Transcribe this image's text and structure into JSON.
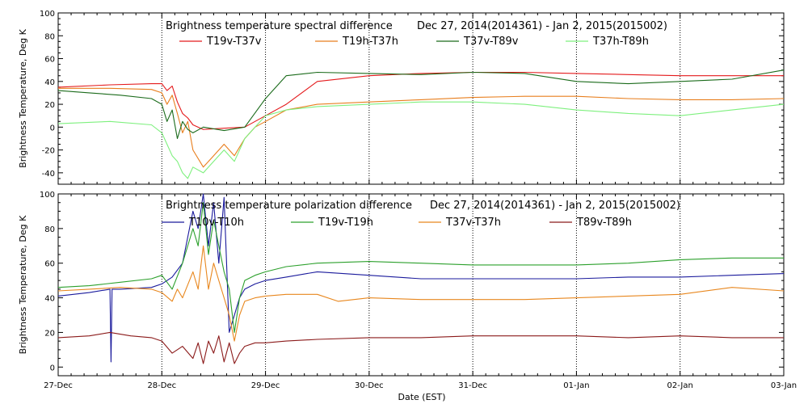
{
  "figure": {
    "xlabel": "Date (EST)",
    "x_tick_labels": [
      "27-Dec",
      "28-Dec",
      "29-Dec",
      "30-Dec",
      "31-Dec",
      "01-Jan",
      "02-Jan",
      "03-Jan"
    ]
  },
  "chart_data": [
    {
      "type": "line",
      "title": "Brightness temperature spectral difference",
      "date_range": "Dec 27, 2014(2014361) - Jan  2, 2015(2015002)",
      "ylabel": "Brightness Temperature, Deg K",
      "xlim": [
        0,
        7
      ],
      "ylim": [
        -50,
        100
      ],
      "yticks": [
        -40,
        -20,
        0,
        20,
        40,
        60,
        80,
        100
      ],
      "grid": "vertical dotted at each day",
      "legend_placement": "top, single row",
      "series": [
        {
          "name": "T19v-T37v",
          "color": "#e41a1c",
          "x": [
            0,
            0.5,
            0.9,
            1.0,
            1.05,
            1.1,
            1.15,
            1.2,
            1.25,
            1.3,
            1.4,
            1.6,
            1.8,
            2.0,
            2.2,
            2.5,
            3.0,
            3.5,
            4.0,
            4.5,
            5.0,
            5.5,
            6.0,
            6.5,
            7.0
          ],
          "y": [
            35,
            37,
            38,
            38,
            32,
            36,
            22,
            12,
            8,
            2,
            -2,
            -1,
            0,
            10,
            20,
            40,
            45,
            47,
            48,
            48,
            47,
            46,
            45,
            45,
            45
          ]
        },
        {
          "name": "T19h-T37h",
          "color": "#e87e1d",
          "x": [
            0,
            0.5,
            0.9,
            1.0,
            1.05,
            1.1,
            1.15,
            1.2,
            1.25,
            1.3,
            1.4,
            1.5,
            1.6,
            1.7,
            1.8,
            1.9,
            2.0,
            2.2,
            2.5,
            3.0,
            3.5,
            4.0,
            4.5,
            5.0,
            5.5,
            6.0,
            6.5,
            7.0
          ],
          "y": [
            34,
            34,
            33,
            30,
            20,
            28,
            12,
            -5,
            5,
            -20,
            -35,
            -25,
            -15,
            -25,
            -10,
            0,
            5,
            15,
            20,
            22,
            24,
            26,
            27,
            27,
            25,
            24,
            24,
            25
          ]
        },
        {
          "name": "T37v-T89v",
          "color": "#1b6b1b",
          "x": [
            0,
            0.3,
            0.6,
            0.9,
            1.0,
            1.05,
            1.1,
            1.15,
            1.2,
            1.25,
            1.3,
            1.4,
            1.6,
            1.8,
            2.0,
            2.2,
            2.5,
            3.0,
            3.5,
            4.0,
            4.5,
            5.0,
            5.5,
            6.0,
            6.5,
            7.0
          ],
          "y": [
            32,
            30,
            28,
            25,
            20,
            5,
            15,
            -10,
            5,
            -2,
            -5,
            0,
            -3,
            0,
            25,
            45,
            48,
            47,
            46,
            48,
            47,
            40,
            38,
            40,
            42,
            50
          ]
        },
        {
          "name": "T37h-T89h",
          "color": "#7ef07e",
          "x": [
            0,
            0.5,
            0.9,
            1.0,
            1.05,
            1.1,
            1.15,
            1.2,
            1.25,
            1.3,
            1.4,
            1.5,
            1.6,
            1.7,
            1.8,
            1.9,
            2.0,
            2.2,
            2.5,
            3.0,
            3.5,
            4.0,
            4.5,
            5.0,
            5.5,
            6.0,
            6.5,
            7.0
          ],
          "y": [
            3,
            5,
            2,
            -5,
            -15,
            -25,
            -30,
            -40,
            -45,
            -35,
            -40,
            -30,
            -20,
            -30,
            -10,
            0,
            10,
            15,
            18,
            20,
            22,
            22,
            20,
            15,
            12,
            10,
            15,
            20
          ]
        }
      ]
    },
    {
      "type": "line",
      "title": "Brightness temperature polarization difference",
      "date_range": "Dec 27, 2014(2014361) - Jan  2, 2015(2015002)",
      "ylabel": "Brightness Temperature, Deg K",
      "xlim": [
        0,
        7
      ],
      "ylim": [
        -5,
        100
      ],
      "yticks": [
        0,
        20,
        40,
        60,
        80,
        100
      ],
      "grid": "vertical dotted at each day",
      "legend_placement": "top, single row",
      "series": [
        {
          "name": "T10v-T10h",
          "color": "#1a1a9c",
          "x": [
            0,
            0.3,
            0.5,
            0.51,
            0.52,
            0.53,
            0.6,
            0.9,
            1.0,
            1.1,
            1.2,
            1.3,
            1.35,
            1.4,
            1.45,
            1.5,
            1.55,
            1.6,
            1.65,
            1.7,
            1.75,
            1.8,
            1.9,
            2.0,
            2.2,
            2.5,
            3.0,
            3.5,
            4.0,
            4.5,
            5.0,
            5.5,
            6.0,
            6.5,
            7.0
          ],
          "y": [
            41,
            43,
            45,
            3,
            45,
            45,
            45,
            46,
            48,
            52,
            60,
            90,
            80,
            100,
            70,
            95,
            60,
            98,
            20,
            30,
            40,
            45,
            48,
            50,
            52,
            55,
            53,
            51,
            51,
            51,
            51,
            52,
            52,
            53,
            54
          ]
        },
        {
          "name": "T19v-T19h",
          "color": "#2ca02c",
          "x": [
            0,
            0.3,
            0.6,
            0.9,
            1.0,
            1.1,
            1.2,
            1.3,
            1.35,
            1.4,
            1.45,
            1.5,
            1.55,
            1.6,
            1.65,
            1.7,
            1.75,
            1.8,
            1.9,
            2.0,
            2.2,
            2.5,
            3.0,
            3.5,
            4.0,
            4.5,
            5.0,
            5.5,
            6.0,
            6.5,
            7.0
          ],
          "y": [
            46,
            47,
            49,
            51,
            53,
            45,
            60,
            80,
            70,
            95,
            65,
            85,
            70,
            55,
            45,
            20,
            40,
            50,
            53,
            55,
            58,
            60,
            61,
            60,
            59,
            59,
            59,
            60,
            62,
            63,
            63
          ]
        },
        {
          "name": "T37v-T37h",
          "color": "#e8871e",
          "x": [
            0,
            0.3,
            0.6,
            0.9,
            1.0,
            1.1,
            1.15,
            1.2,
            1.3,
            1.35,
            1.4,
            1.45,
            1.5,
            1.55,
            1.6,
            1.65,
            1.7,
            1.75,
            1.8,
            1.9,
            2.0,
            2.2,
            2.5,
            2.7,
            3.0,
            3.5,
            4.0,
            4.5,
            5.0,
            5.5,
            6.0,
            6.5,
            7.0
          ],
          "y": [
            44,
            45,
            46,
            45,
            43,
            38,
            45,
            40,
            55,
            45,
            70,
            45,
            60,
            50,
            40,
            30,
            15,
            30,
            38,
            40,
            41,
            42,
            42,
            38,
            40,
            39,
            39,
            39,
            40,
            41,
            42,
            46,
            44
          ]
        },
        {
          "name": "T89v-T89h",
          "color": "#8b1a1a",
          "x": [
            0,
            0.3,
            0.5,
            0.7,
            0.9,
            1.0,
            1.1,
            1.2,
            1.3,
            1.35,
            1.4,
            1.45,
            1.5,
            1.55,
            1.6,
            1.65,
            1.7,
            1.75,
            1.8,
            1.9,
            2.0,
            2.2,
            2.5,
            3.0,
            3.5,
            4.0,
            4.5,
            5.0,
            5.5,
            6.0,
            6.5,
            7.0
          ],
          "y": [
            17,
            18,
            20,
            18,
            17,
            15,
            8,
            12,
            5,
            14,
            2,
            15,
            8,
            18,
            3,
            14,
            2,
            8,
            12,
            14,
            14,
            15,
            16,
            17,
            17,
            18,
            18,
            18,
            17,
            18,
            17,
            17
          ]
        }
      ]
    }
  ]
}
